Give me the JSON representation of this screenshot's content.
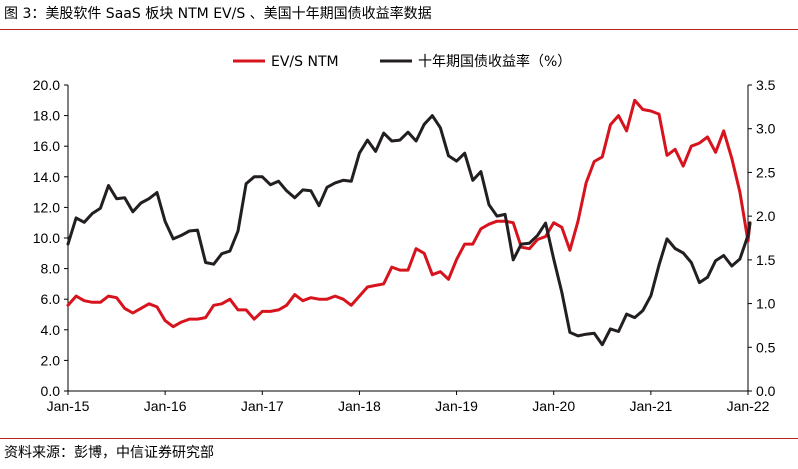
{
  "header": {
    "title": "图 3：美股软件 SaaS 板块 NTM EV/S 、美国十年期国债收益率数据"
  },
  "footer": {
    "source": "资料来源：彭博，中信证券研究部"
  },
  "colors": {
    "ev_s": "#d7141d",
    "yield": "#231f20",
    "rule": "#b22222"
  },
  "chart_data": {
    "type": "line",
    "title": "",
    "x_ticks": [
      "Jan-15",
      "Jan-16",
      "Jan-17",
      "Jan-18",
      "Jan-19",
      "Jan-20",
      "Jan-21",
      "Jan-22"
    ],
    "x_range": [
      "2015-01",
      "2022-01"
    ],
    "left_axis": {
      "min": 0,
      "max": 20,
      "step": 2,
      "tick_labels": [
        "0.0",
        "2.0",
        "4.0",
        "6.0",
        "8.0",
        "10.0",
        "12.0",
        "14.0",
        "16.0",
        "18.0",
        "20.0"
      ]
    },
    "right_axis": {
      "min": 0,
      "max": 3.5,
      "step": 0.5,
      "tick_labels": [
        "0.0",
        "0.5",
        "1.0",
        "1.5",
        "2.0",
        "2.5",
        "3.0",
        "3.5"
      ]
    },
    "legend_position": "top-center",
    "grid": false,
    "series": [
      {
        "name": "EV/S NTM",
        "axis": "left",
        "color_key": "ev_s",
        "points": [
          [
            "2015-01",
            5.6
          ],
          [
            "2015-02",
            6.2
          ],
          [
            "2015-03",
            5.9
          ],
          [
            "2015-04",
            5.8
          ],
          [
            "2015-05",
            5.8
          ],
          [
            "2015-06",
            6.2
          ],
          [
            "2015-07",
            6.1
          ],
          [
            "2015-08",
            5.4
          ],
          [
            "2015-09",
            5.1
          ],
          [
            "2015-10",
            5.4
          ],
          [
            "2015-11",
            5.7
          ],
          [
            "2015-12",
            5.5
          ],
          [
            "2016-01",
            4.6
          ],
          [
            "2016-02",
            4.2
          ],
          [
            "2016-03",
            4.5
          ],
          [
            "2016-04",
            4.7
          ],
          [
            "2016-05",
            4.7
          ],
          [
            "2016-06",
            4.8
          ],
          [
            "2016-07",
            5.6
          ],
          [
            "2016-08",
            5.7
          ],
          [
            "2016-09",
            6.0
          ],
          [
            "2016-10",
            5.3
          ],
          [
            "2016-11",
            5.3
          ],
          [
            "2016-12",
            4.7
          ],
          [
            "2017-01",
            5.2
          ],
          [
            "2017-02",
            5.2
          ],
          [
            "2017-03",
            5.3
          ],
          [
            "2017-04",
            5.6
          ],
          [
            "2017-05",
            6.3
          ],
          [
            "2017-06",
            5.9
          ],
          [
            "2017-07",
            6.1
          ],
          [
            "2017-08",
            6.0
          ],
          [
            "2017-09",
            6.0
          ],
          [
            "2017-10",
            6.2
          ],
          [
            "2017-11",
            6.0
          ],
          [
            "2017-12",
            5.6
          ],
          [
            "2018-01",
            6.2
          ],
          [
            "2018-02",
            6.8
          ],
          [
            "2018-03",
            6.9
          ],
          [
            "2018-04",
            7.0
          ],
          [
            "2018-05",
            8.1
          ],
          [
            "2018-06",
            7.9
          ],
          [
            "2018-07",
            7.9
          ],
          [
            "2018-08",
            9.3
          ],
          [
            "2018-09",
            9.0
          ],
          [
            "2018-10",
            7.6
          ],
          [
            "2018-11",
            7.8
          ],
          [
            "2018-12",
            7.3
          ],
          [
            "2019-01",
            8.6
          ],
          [
            "2019-02",
            9.6
          ],
          [
            "2019-03",
            9.6
          ],
          [
            "2019-04",
            10.6
          ],
          [
            "2019-05",
            10.9
          ],
          [
            "2019-06",
            11.1
          ],
          [
            "2019-07",
            11.1
          ],
          [
            "2019-08",
            11.0
          ],
          [
            "2019-09",
            9.4
          ],
          [
            "2019-10",
            9.3
          ],
          [
            "2019-11",
            9.9
          ],
          [
            "2019-12",
            10.1
          ],
          [
            "2020-01",
            11.0
          ],
          [
            "2020-02",
            10.7
          ],
          [
            "2020-03",
            9.2
          ],
          [
            "2020-04",
            11.1
          ],
          [
            "2020-05",
            13.6
          ],
          [
            "2020-06",
            15.0
          ],
          [
            "2020-07",
            15.3
          ],
          [
            "2020-08",
            17.4
          ],
          [
            "2020-09",
            18.0
          ],
          [
            "2020-10",
            17.0
          ],
          [
            "2020-11",
            19.0
          ],
          [
            "2020-12",
            18.4
          ],
          [
            "2021-01",
            18.3
          ],
          [
            "2021-02",
            18.1
          ],
          [
            "2021-03",
            15.4
          ],
          [
            "2021-04",
            15.8
          ],
          [
            "2021-05",
            14.7
          ],
          [
            "2021-06",
            16.0
          ],
          [
            "2021-07",
            16.2
          ],
          [
            "2021-08",
            16.6
          ],
          [
            "2021-09",
            15.6
          ],
          [
            "2021-10",
            17.0
          ],
          [
            "2021-11",
            15.2
          ],
          [
            "2021-12",
            13.0
          ],
          [
            "2022-01",
            9.8
          ],
          [
            "2022-01",
            11.0
          ]
        ]
      },
      {
        "name": "十年期国债收益率（%）",
        "axis": "right",
        "color_key": "yield",
        "points": [
          [
            "2015-01",
            1.68
          ],
          [
            "2015-02",
            1.98
          ],
          [
            "2015-03",
            1.93
          ],
          [
            "2015-04",
            2.03
          ],
          [
            "2015-05",
            2.09
          ],
          [
            "2015-06",
            2.35
          ],
          [
            "2015-07",
            2.2
          ],
          [
            "2015-08",
            2.21
          ],
          [
            "2015-09",
            2.05
          ],
          [
            "2015-10",
            2.15
          ],
          [
            "2015-11",
            2.2
          ],
          [
            "2015-12",
            2.27
          ],
          [
            "2016-01",
            1.94
          ],
          [
            "2016-02",
            1.74
          ],
          [
            "2016-03",
            1.78
          ],
          [
            "2016-04",
            1.83
          ],
          [
            "2016-05",
            1.84
          ],
          [
            "2016-06",
            1.47
          ],
          [
            "2016-07",
            1.45
          ],
          [
            "2016-08",
            1.57
          ],
          [
            "2016-09",
            1.6
          ],
          [
            "2016-10",
            1.83
          ],
          [
            "2016-11",
            2.37
          ],
          [
            "2016-12",
            2.45
          ],
          [
            "2017-01",
            2.45
          ],
          [
            "2017-02",
            2.36
          ],
          [
            "2017-03",
            2.4
          ],
          [
            "2017-04",
            2.29
          ],
          [
            "2017-05",
            2.21
          ],
          [
            "2017-06",
            2.3
          ],
          [
            "2017-07",
            2.29
          ],
          [
            "2017-08",
            2.12
          ],
          [
            "2017-09",
            2.33
          ],
          [
            "2017-10",
            2.38
          ],
          [
            "2017-11",
            2.41
          ],
          [
            "2017-12",
            2.4
          ],
          [
            "2018-01",
            2.72
          ],
          [
            "2018-02",
            2.87
          ],
          [
            "2018-03",
            2.74
          ],
          [
            "2018-04",
            2.95
          ],
          [
            "2018-05",
            2.86
          ],
          [
            "2018-06",
            2.87
          ],
          [
            "2018-07",
            2.96
          ],
          [
            "2018-08",
            2.86
          ],
          [
            "2018-09",
            3.05
          ],
          [
            "2018-10",
            3.15
          ],
          [
            "2018-11",
            3.01
          ],
          [
            "2018-12",
            2.69
          ],
          [
            "2019-01",
            2.63
          ],
          [
            "2019-02",
            2.72
          ],
          [
            "2019-03",
            2.41
          ],
          [
            "2019-04",
            2.51
          ],
          [
            "2019-05",
            2.13
          ],
          [
            "2019-06",
            2.0
          ],
          [
            "2019-07",
            2.02
          ],
          [
            "2019-08",
            1.5
          ],
          [
            "2019-09",
            1.68
          ],
          [
            "2019-10",
            1.69
          ],
          [
            "2019-11",
            1.78
          ],
          [
            "2019-12",
            1.92
          ],
          [
            "2020-01",
            1.51
          ],
          [
            "2020-02",
            1.13
          ],
          [
            "2020-03",
            0.67
          ],
          [
            "2020-04",
            0.63
          ],
          [
            "2020-05",
            0.65
          ],
          [
            "2020-06",
            0.66
          ],
          [
            "2020-07",
            0.53
          ],
          [
            "2020-08",
            0.71
          ],
          [
            "2020-09",
            0.68
          ],
          [
            "2020-10",
            0.88
          ],
          [
            "2020-11",
            0.84
          ],
          [
            "2020-12",
            0.92
          ],
          [
            "2021-01",
            1.09
          ],
          [
            "2021-02",
            1.44
          ],
          [
            "2021-03",
            1.74
          ],
          [
            "2021-04",
            1.63
          ],
          [
            "2021-05",
            1.58
          ],
          [
            "2021-06",
            1.47
          ],
          [
            "2021-07",
            1.24
          ],
          [
            "2021-08",
            1.3
          ],
          [
            "2021-09",
            1.49
          ],
          [
            "2021-10",
            1.55
          ],
          [
            "2021-11",
            1.43
          ],
          [
            "2021-12",
            1.51
          ],
          [
            "2022-01",
            1.78
          ],
          [
            "2022-01",
            1.92
          ]
        ]
      }
    ]
  }
}
